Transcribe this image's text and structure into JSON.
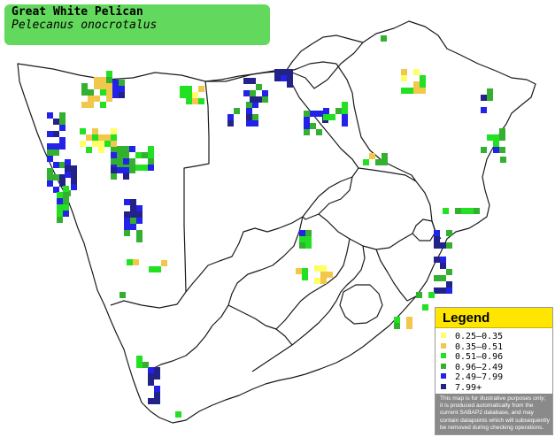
{
  "title": {
    "common_name": "Great White Pelican",
    "scientific_name": "Pelecanus onocrotalus"
  },
  "legend": {
    "heading": "Legend",
    "items": [
      {
        "label": "0.25–0.35",
        "color": "#ffff66"
      },
      {
        "label": "0.35–0.51",
        "color": "#f2c84b"
      },
      {
        "label": "0.51–0.96",
        "color": "#22e022"
      },
      {
        "label": "0.96–2.49",
        "color": "#33b030"
      },
      {
        "label": "2.49–7.99",
        "color": "#2222e8"
      },
      {
        "label": "7.99+",
        "color": "#222288"
      }
    ],
    "note": "This map is for illustrative purposes only; it is produced automatically from the current SABAP2 database, and may contain datapoints which will subsequently be removed during checking operations."
  },
  "colors": {
    "title_background": "#62d85c",
    "legend_header": "#ffe600",
    "legend_note_background": "#8a8a8a",
    "boundary_line": "#1a1a1a"
  }
}
